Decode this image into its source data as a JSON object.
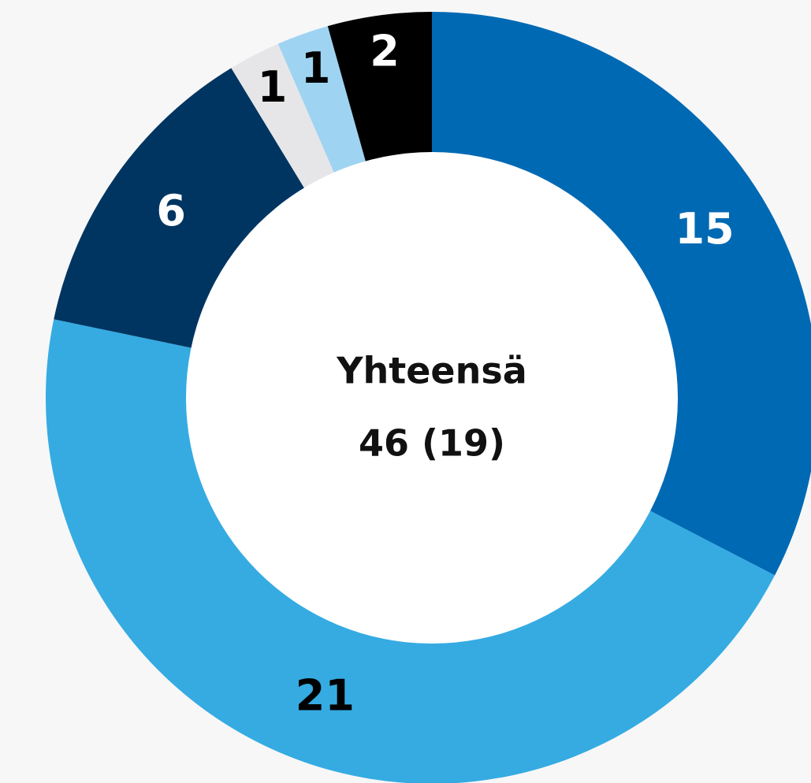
{
  "chart_data": {
    "type": "donut",
    "center_title": "Yhteensä",
    "center_subtitle": "46 (19)",
    "values": [
      15,
      21,
      6,
      1,
      1,
      2
    ],
    "colors": [
      "#0069b4",
      "#35abe2",
      "#003561",
      "#e6e6e8",
      "#9ed4f2",
      "#000000"
    ]
  }
}
